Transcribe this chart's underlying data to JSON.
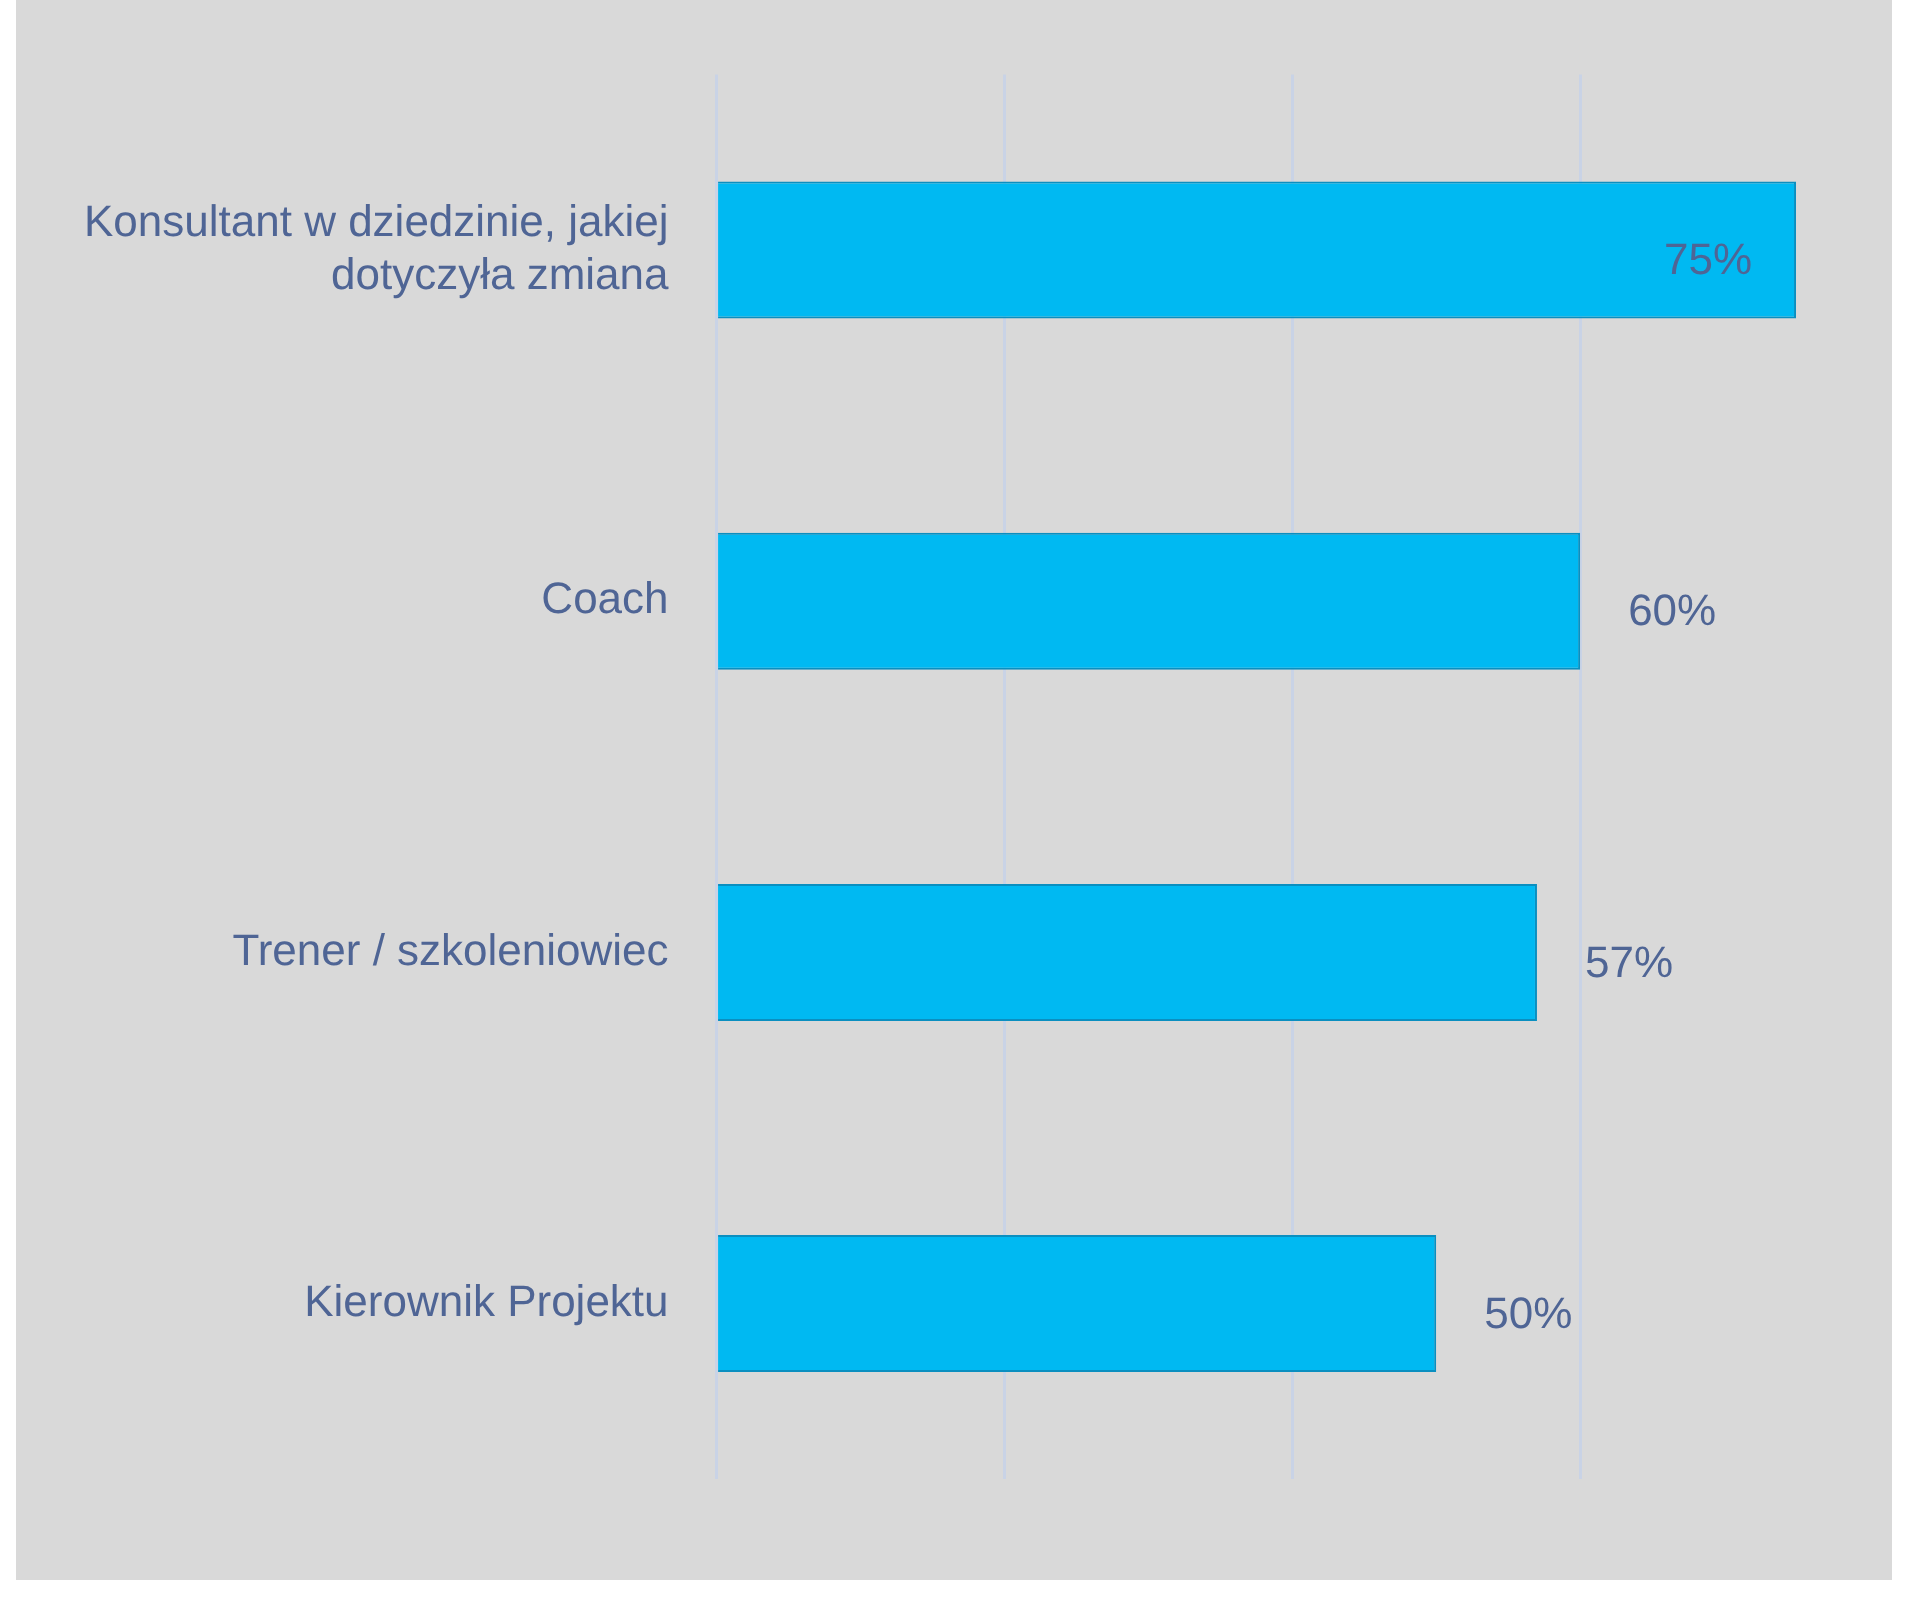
{
  "chart_data": {
    "type": "bar",
    "orientation": "horizontal",
    "categories": [
      "Konsultant w dziedzinie, jakiej dotyczyła zmiana",
      "Coach",
      "Trener / szkoleniowiec",
      "Kierownik Projektu"
    ],
    "values": [
      75,
      60,
      57,
      50
    ],
    "value_labels": [
      "75%",
      "60%",
      "57%",
      "50%"
    ],
    "color": "#00b9f2",
    "xticks": [
      {
        "value": 0,
        "label": null
      },
      {
        "value": 20,
        "label": null
      },
      {
        "value": 40,
        "label": null
      },
      {
        "value": 60,
        "label": null
      }
    ],
    "grid": "x",
    "tick_labels": "y"
  }
}
